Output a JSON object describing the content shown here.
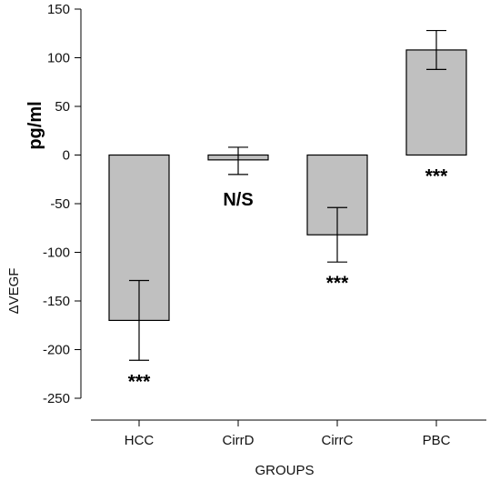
{
  "chart_data": {
    "type": "bar",
    "xlabel": "GROUPS",
    "ylabel": "ΔVEGF",
    "yunit": "pg/ml",
    "ylim": [
      -250,
      150
    ],
    "yticks": [
      "-250",
      "-200",
      "-150",
      "-100",
      "-50",
      "0",
      "50",
      "100",
      "150"
    ],
    "categories": [
      "HCC",
      "CirrD",
      "CirrC",
      "PBC"
    ],
    "values": [
      -170,
      -5,
      -82,
      108
    ],
    "error_upper": [
      -129,
      8,
      -54,
      128
    ],
    "error_lower": [
      -211,
      -20,
      -110,
      88
    ],
    "significance": [
      "***",
      "N/S",
      "***",
      "***"
    ],
    "bar_color": "#c0c0c0",
    "edge_color": "#000000",
    "grid": false
  }
}
